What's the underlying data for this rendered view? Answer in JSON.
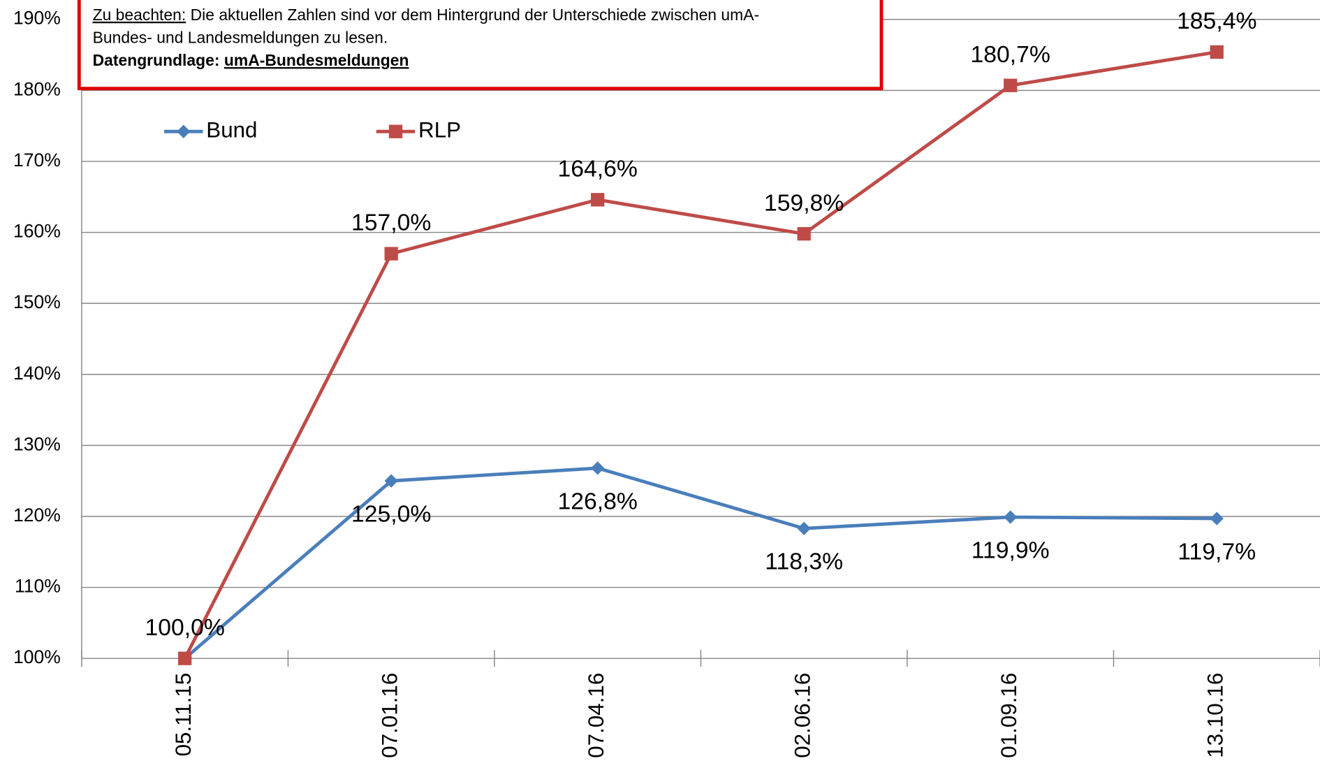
{
  "chart_data": {
    "type": "line",
    "categories": [
      "05.11.15",
      "07.01.16",
      "07.04.16",
      "02.06.16",
      "01.09.16",
      "13.10.16"
    ],
    "series": [
      {
        "name": "Bund",
        "color": "#4a7ebb",
        "marker": "diamond",
        "values": [
          100,
          125,
          126.8,
          118.3,
          119.9,
          119.7
        ],
        "value_labels": [
          null,
          "125,0%",
          "126,8%",
          "118,3%",
          "119,9%",
          "119,7%"
        ]
      },
      {
        "name": "RLP",
        "color": "#be4b48",
        "marker": "square",
        "values": [
          100,
          157,
          164.6,
          159.8,
          180.7,
          185.4
        ],
        "value_labels": [
          "100,0%",
          "157,0%",
          "164,6%",
          "159,8%",
          "180,7%",
          "185,4%"
        ]
      }
    ],
    "ylim": [
      100,
      190
    ],
    "yticks": [
      {
        "value": 100,
        "label": "100%"
      },
      {
        "value": 110,
        "label": "110%"
      },
      {
        "value": 120,
        "label": "120%"
      },
      {
        "value": 130,
        "label": "130%"
      },
      {
        "value": 140,
        "label": "140%"
      },
      {
        "value": 150,
        "label": "150%"
      },
      {
        "value": 160,
        "label": "160%"
      },
      {
        "value": 170,
        "label": "170%"
      },
      {
        "value": 180,
        "label": "180%"
      },
      {
        "value": 190,
        "label": "190%"
      }
    ],
    "grid": true,
    "legend": "top-left",
    "annotation": {
      "note_label": "Zu beachten:",
      "note_lines": [
        " Die aktuellen Zahlen sind vor dem Hintergrund der Unterschiede zwischen umA-",
        "Bundes- und Landesmeldungen zu lesen."
      ],
      "source_label": "Datengrundlage:",
      "source_value": "umA-Bundesmeldungen"
    }
  }
}
